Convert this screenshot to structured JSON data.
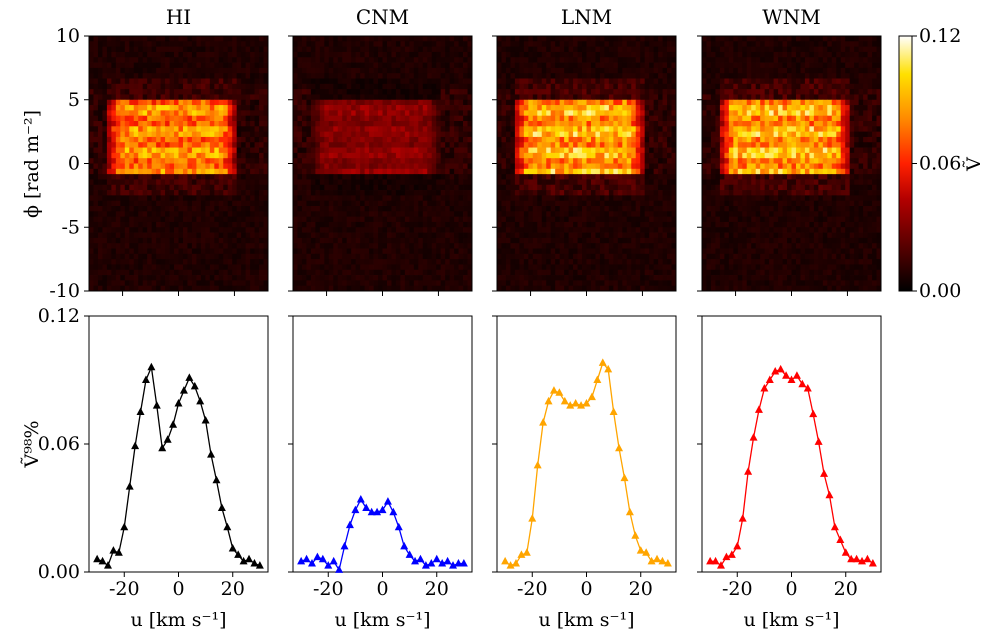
{
  "chart_data": [
    {
      "type": "heatmap",
      "panel": "top",
      "titles": [
        "HI",
        "CNM",
        "LNM",
        "WNM"
      ],
      "ylabel": "ϕ [rad m⁻²]",
      "yticks": [
        "10",
        "5",
        "0",
        "-5",
        "-10"
      ],
      "ylim": [
        -10,
        10
      ],
      "xlim": [
        -32,
        32
      ],
      "colorbar": {
        "label": "Ṽ",
        "ticks": [
          "0.12",
          "0.06",
          "0.00"
        ],
        "range": [
          0,
          0.12
        ],
        "colormap": [
          "#000000",
          "#5a0000",
          "#b30000",
          "#ff2000",
          "#ff8c00",
          "#ffe000",
          "#ffffff"
        ]
      },
      "emission_peak_intensity": [
        0.09,
        0.035,
        0.1,
        0.1
      ],
      "emission_region": {
        "u_range": [
          -25,
          20
        ],
        "phi_range": [
          0,
          5
        ]
      }
    },
    {
      "type": "line",
      "panel": "bottom",
      "xlabel": "u [km s⁻¹]",
      "ylabel": "Ṽ⁹⁸%",
      "xticks": [
        "-20",
        "0",
        "20"
      ],
      "yticks": [
        "0.12",
        "0.06",
        "0.00"
      ],
      "xlim": [
        -33,
        33
      ],
      "ylim": [
        0,
        0.12
      ],
      "x": [
        -30,
        -28,
        -26,
        -24,
        -22,
        -20,
        -18,
        -16,
        -14,
        -12,
        -10,
        -8,
        -6,
        -4,
        -2,
        0,
        2,
        4,
        6,
        8,
        10,
        12,
        14,
        16,
        18,
        20,
        22,
        24,
        26,
        28,
        30
      ],
      "series": [
        {
          "color": "#000000",
          "values": [
            0.006,
            0.005,
            0.003,
            0.01,
            0.009,
            0.021,
            0.04,
            0.059,
            0.075,
            0.09,
            0.096,
            0.078,
            0.058,
            0.062,
            0.069,
            0.079,
            0.085,
            0.091,
            0.087,
            0.08,
            0.071,
            0.055,
            0.043,
            0.03,
            0.021,
            0.011,
            0.008,
            0.005,
            0.006,
            0.004,
            0.003
          ]
        },
        {
          "color": "#0000ff",
          "values": [
            0.005,
            0.006,
            0.004,
            0.007,
            0.006,
            0.003,
            0.005,
            0.001,
            0.012,
            0.022,
            0.029,
            0.034,
            0.03,
            0.028,
            0.028,
            0.029,
            0.033,
            0.028,
            0.021,
            0.012,
            0.008,
            0.005,
            0.006,
            0.003,
            0.004,
            0.006,
            0.004,
            0.005,
            0.003,
            0.004,
            0.004
          ]
        },
        {
          "color": "#ffa500",
          "values": [
            0.005,
            0.003,
            0.004,
            0.008,
            0.009,
            0.025,
            0.05,
            0.07,
            0.08,
            0.085,
            0.084,
            0.08,
            0.078,
            0.079,
            0.078,
            0.079,
            0.082,
            0.09,
            0.098,
            0.095,
            0.075,
            0.058,
            0.044,
            0.028,
            0.017,
            0.01,
            0.009,
            0.005,
            0.006,
            0.005,
            0.004
          ]
        },
        {
          "color": "#ff0000",
          "values": [
            0.005,
            0.005,
            0.003,
            0.007,
            0.008,
            0.012,
            0.025,
            0.047,
            0.063,
            0.076,
            0.086,
            0.09,
            0.094,
            0.095,
            0.092,
            0.09,
            0.092,
            0.088,
            0.086,
            0.074,
            0.061,
            0.046,
            0.036,
            0.021,
            0.015,
            0.009,
            0.006,
            0.006,
            0.005,
            0.006,
            0.004
          ]
        }
      ]
    }
  ]
}
